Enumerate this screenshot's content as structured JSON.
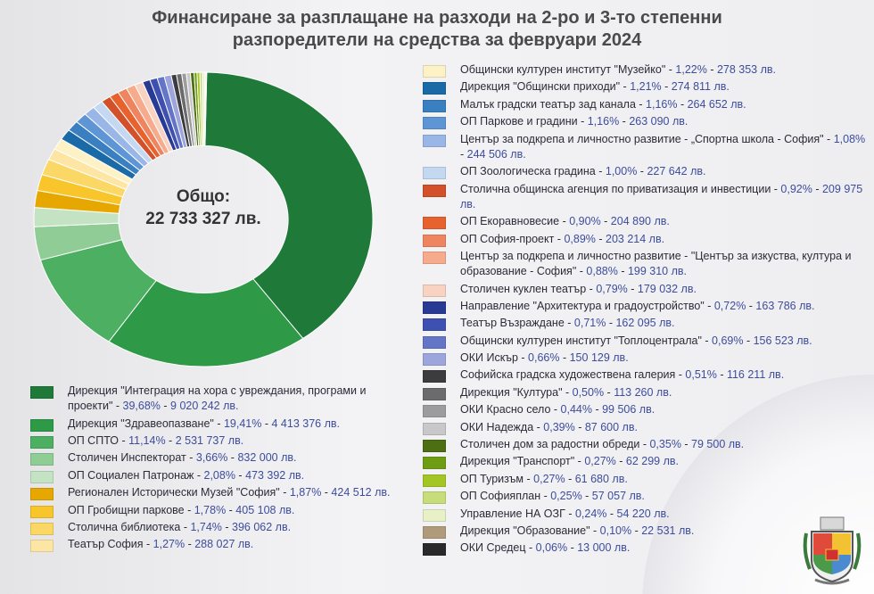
{
  "title_line1": "Финансиране за разплащане на разходи на 2-ро и 3-то степенни",
  "title_line2": "разпоредители на средства за февруари 2024",
  "center_label": "Общо:",
  "center_total": "22 733 327 лв.",
  "chart_data": {
    "type": "pie",
    "title": "Финансиране за разплащане на разходи на 2-ро и 3-то степенни разпоредители на средства за февруари 2024",
    "total": 22733327,
    "unit": "лв.",
    "legend_placement": "left-bottom and right",
    "slices": [
      {
        "name": "Дирекция \"Интеграция на хора с увреждания, програми и проекти\"",
        "pct": "39,68%",
        "amount": "9 020 242 лв.",
        "value": 9020242,
        "color": "#1f7a3a"
      },
      {
        "name": "Дирекция \"Здравеопазване\"",
        "pct": "19,41%",
        "amount": "4 413 376 лв.",
        "value": 4413376,
        "color": "#2e9a48"
      },
      {
        "name": "ОП СПТО",
        "pct": "11,14%",
        "amount": "2 531 737 лв.",
        "value": 2531737,
        "color": "#4caf62"
      },
      {
        "name": "Столичен Инспекторат",
        "pct": "3,66%",
        "amount": "832 000 лв.",
        "value": 832000,
        "color": "#8fcc96"
      },
      {
        "name": "ОП Социален Патронаж",
        "pct": "2,08%",
        "amount": "473 392 лв.",
        "value": 473392,
        "color": "#c3e3c3"
      },
      {
        "name": "Регионален Исторически Музей \"София\"",
        "pct": "1,87%",
        "amount": "424 512 лв.",
        "value": 424512,
        "color": "#e6a800"
      },
      {
        "name": "ОП Гробищни паркове",
        "pct": "1,78%",
        "amount": "405 108 лв.",
        "value": 405108,
        "color": "#f8c52a"
      },
      {
        "name": "Столична библиотека",
        "pct": "1,74%",
        "amount": "396 062 лв.",
        "value": 396062,
        "color": "#fbd766"
      },
      {
        "name": "Театър София",
        "pct": "1,27%",
        "amount": "288 027 лв.",
        "value": 288027,
        "color": "#fde6a3"
      },
      {
        "name": "Общински културен институт \"Музейко\"",
        "pct": "1,22%",
        "amount": "278 353 лв.",
        "value": 278353,
        "color": "#fdf1c6"
      },
      {
        "name": "Дирекция \"Общински приходи\"",
        "pct": "1,21%",
        "amount": "274 811 лв.",
        "value": 274811,
        "color": "#1a6aa8"
      },
      {
        "name": "Малък градски театър зад канала",
        "pct": "1,16%",
        "amount": "264 652 лв.",
        "value": 264652,
        "color": "#3a7fc0"
      },
      {
        "name": "ОП Паркове и градини",
        "pct": "1,16%",
        "amount": "263 090 лв.",
        "value": 263090,
        "color": "#5e95d4"
      },
      {
        "name": "Център за подкрепа и личностно развитие - „Спортна школа - София\"",
        "pct": "1,08%",
        "amount": "244 506 лв.",
        "value": 244506,
        "color": "#9ab6e6"
      },
      {
        "name": "ОП Зоологическа градина",
        "pct": "1,00%",
        "amount": "227 642 лв.",
        "value": 227642,
        "color": "#c4d8f2"
      },
      {
        "name": "Столична общинска агенция по приватизация и инвестиции",
        "pct": "0,92%",
        "amount": "209 975 лв.",
        "value": 209975,
        "color": "#d2502a"
      },
      {
        "name": "ОП Екоравновесие",
        "pct": "0,90%",
        "amount": "204 890 лв.",
        "value": 204890,
        "color": "#e8622e"
      },
      {
        "name": "ОП София-проект",
        "pct": "0,89%",
        "amount": "203 214 лв.",
        "value": 203214,
        "color": "#ee8560"
      },
      {
        "name": "Център за подкрепа и личностно развитие - \"Център за изкуства, култура и образование - София\"",
        "pct": "0,88%",
        "amount": "199 310 лв.",
        "value": 199310,
        "color": "#f5ab8c"
      },
      {
        "name": "Столичен куклен театър",
        "pct": "0,79%",
        "amount": "179 032 лв.",
        "value": 179032,
        "color": "#f9d3c2"
      },
      {
        "name": "Направление \"Архитектура и градоустройство\"",
        "pct": "0,72%",
        "amount": "163 786 лв.",
        "value": 163786,
        "color": "#283a94"
      },
      {
        "name": "Театър Възраждане",
        "pct": "0,71%",
        "amount": "162 095 лв.",
        "value": 162095,
        "color": "#3f51b0"
      },
      {
        "name": "Общински културен институт \"Топлоцентрала\"",
        "pct": "0,69%",
        "amount": "156 523 лв.",
        "value": 156523,
        "color": "#6474c6"
      },
      {
        "name": "ОКИ Искър",
        "pct": "0,66%",
        "amount": "150 129 лв.",
        "value": 150129,
        "color": "#9ca6dc"
      },
      {
        "name": "Софийска градска художествена галерия",
        "pct": "0,51%",
        "amount": "116 211 лв.",
        "value": 116211,
        "color": "#3c3c3e"
      },
      {
        "name": "Дирекция \"Култура\"",
        "pct": "0,50%",
        "amount": "113 260 лв.",
        "value": 113260,
        "color": "#6b6b6d"
      },
      {
        "name": "ОКИ Красно село",
        "pct": "0,44%",
        "amount": "99 506 лв.",
        "value": 99506,
        "color": "#9c9c9e"
      },
      {
        "name": "ОКИ Надежда",
        "pct": "0,39%",
        "amount": "87 600 лв.",
        "value": 87600,
        "color": "#c8c8ca"
      },
      {
        "name": "Столичен дом за радостни обреди",
        "pct": "0,35%",
        "amount": "79 500 лв.",
        "value": 79500,
        "color": "#4d6e12"
      },
      {
        "name": "Дирекция \"Транспорт\"",
        "pct": "0,27%",
        "amount": "62 299 лв.",
        "value": 62299,
        "color": "#6e9c14"
      },
      {
        "name": "ОП Туризъм",
        "pct": "0,27%",
        "amount": "61 680 лв.",
        "value": 61680,
        "color": "#a4c526"
      },
      {
        "name": "ОП Софияплан",
        "pct": "0,25%",
        "amount": "57 057 лв.",
        "value": 57057,
        "color": "#c7dd7a"
      },
      {
        "name": "Управление НА ОЗГ",
        "pct": "0,24%",
        "amount": "54 220 лв.",
        "value": 54220,
        "color": "#e8f0c8"
      },
      {
        "name": "Дирекция \"Образование\"",
        "pct": "0,10%",
        "amount": "22 531 лв.",
        "value": 22531,
        "color": "#b09a7c"
      },
      {
        "name": "ОКИ Средец",
        "pct": "0,06%",
        "amount": "13 000 лв.",
        "value": 13000,
        "color": "#2a2a2a"
      }
    ]
  }
}
